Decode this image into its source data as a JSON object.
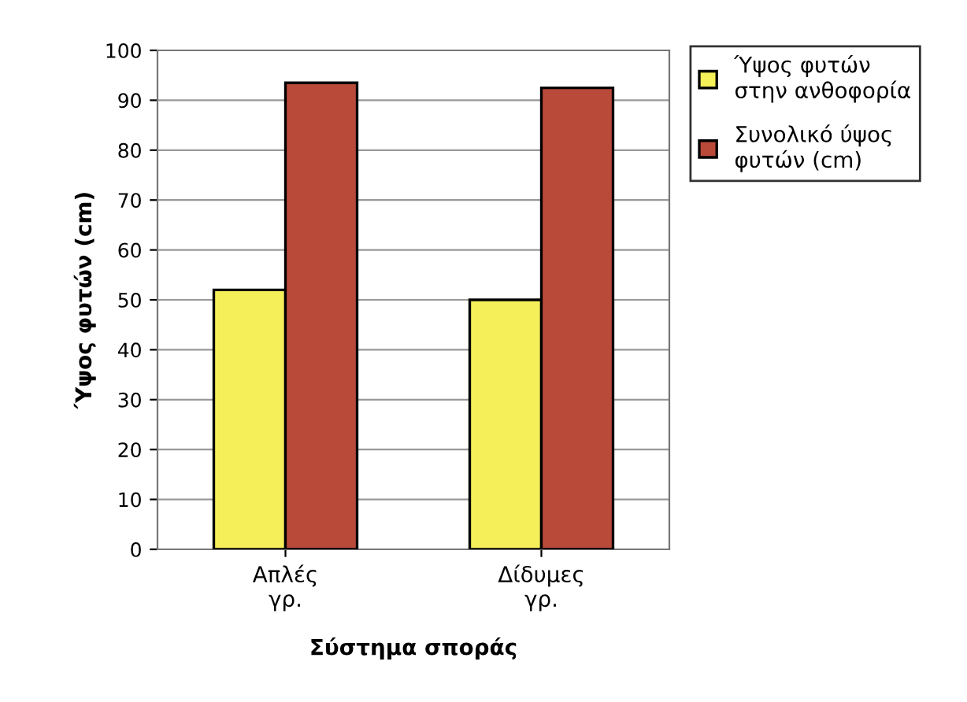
{
  "chart_data": {
    "type": "bar",
    "xlabel": "Σύστημα σποράς",
    "ylabel": "Ύψος φυτών (cm)",
    "categories": [
      "Απλές\nγρ.",
      "Δίδυμες\nγρ."
    ],
    "series": [
      {
        "name": "Ύψος φυτών\nστην ανθοφορία",
        "color": "#f5ef5a",
        "values": [
          52,
          50
        ]
      },
      {
        "name": "Συνολικό ύψος\nφυτών (cm)",
        "color": "#b94a3a",
        "values": [
          93.5,
          92.5
        ]
      }
    ],
    "ylim": [
      0,
      100
    ],
    "yticks": [
      0,
      10,
      20,
      30,
      40,
      50,
      60,
      70,
      80,
      90,
      100
    ],
    "grid": "y",
    "legend": "top right"
  }
}
